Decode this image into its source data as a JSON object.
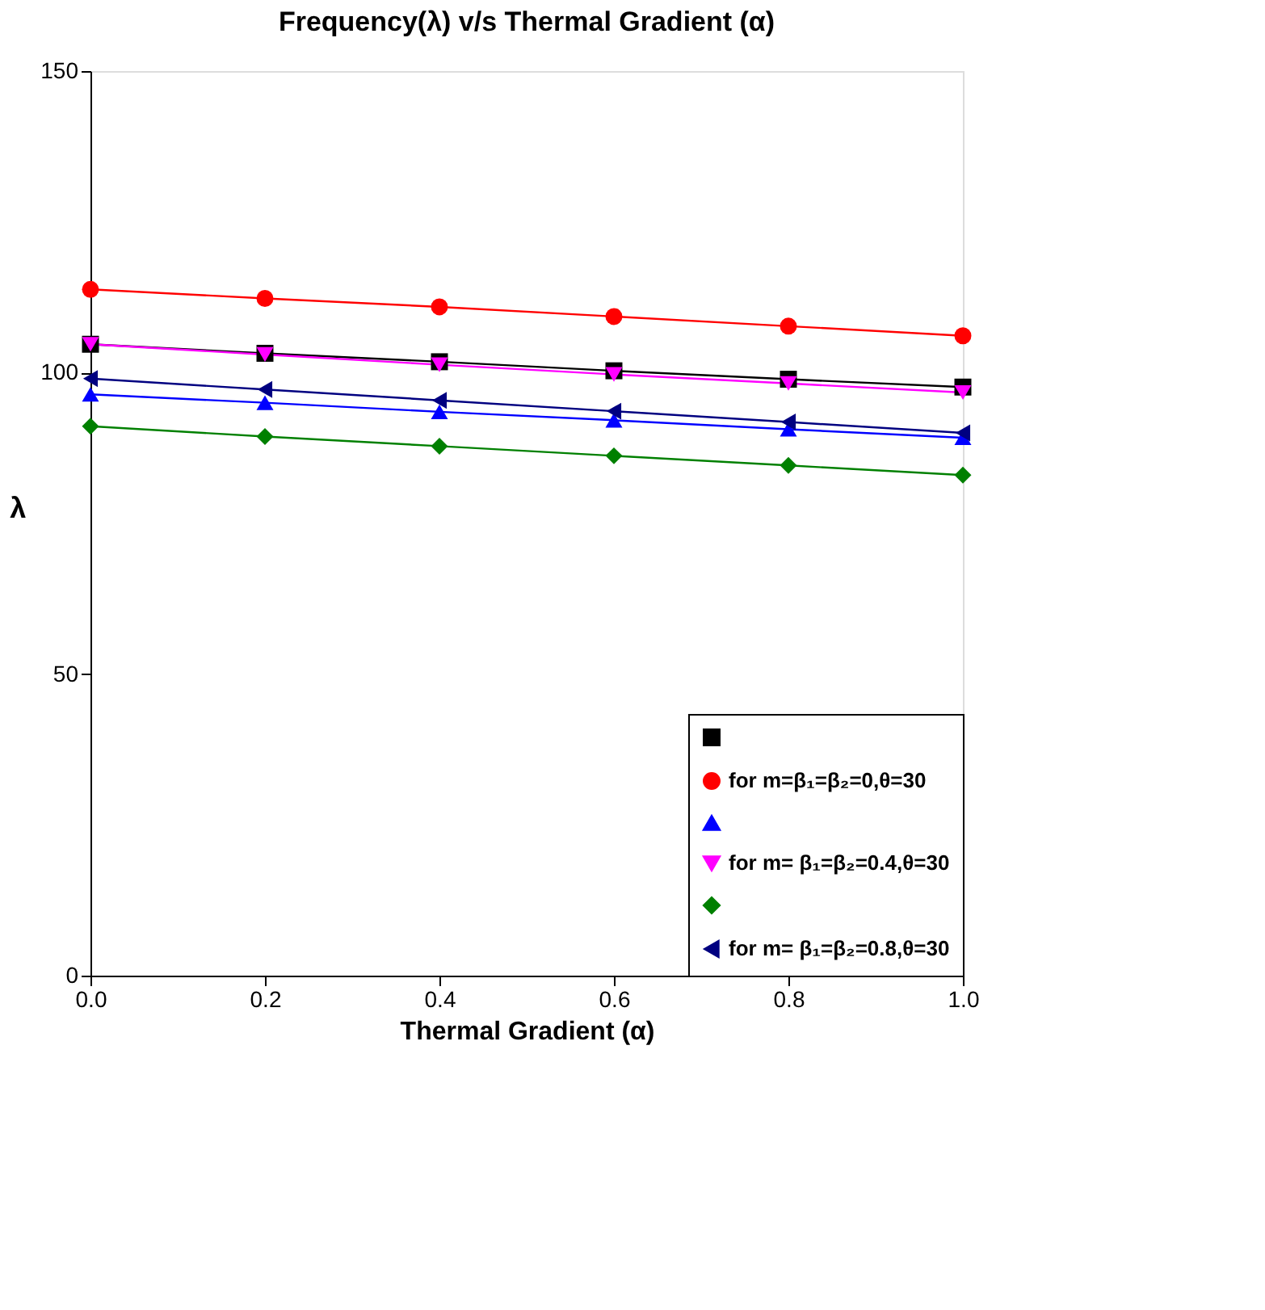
{
  "chart_data": {
    "type": "line",
    "title": "Frequency(λ) v/s Thermal Gradient (α)",
    "xlabel": "Thermal Gradient (α)",
    "ylabel": "λ",
    "x": [
      0,
      0.2,
      0.4,
      0.6,
      0.8,
      1.0
    ],
    "series": [
      {
        "color": "#000000",
        "marker": "square",
        "values": [
          104.7,
          103.2,
          101.8,
          100.3,
          98.9,
          97.6
        ]
      },
      {
        "name": "for m=β₁=β₂=0,θ=30",
        "color": "#ff0000",
        "marker": "circle",
        "values": [
          113.8,
          112.3,
          110.9,
          109.3,
          107.7,
          106.1
        ]
      },
      {
        "color": "#0000ff",
        "marker": "triangle",
        "values": [
          96.4,
          95.0,
          93.5,
          92.1,
          90.6,
          89.2
        ]
      },
      {
        "name": "for m= β₁=β₂=0.4,θ=30",
        "color": "#ff00ff",
        "marker": "triangle-down",
        "values": [
          104.7,
          103.0,
          101.3,
          99.7,
          98.2,
          96.7
        ]
      },
      {
        "color": "#008000",
        "marker": "diamond",
        "values": [
          91.1,
          89.4,
          87.8,
          86.2,
          84.6,
          83.0
        ]
      },
      {
        "name": "for m= β₁=β₂=0.8,θ=30",
        "color": "#000080",
        "marker": "triangle-left",
        "values": [
          99.0,
          97.2,
          95.4,
          93.6,
          91.8,
          90.0
        ]
      }
    ],
    "xlim": [
      0,
      1.0
    ],
    "xticks": [
      {
        "value": 0,
        "label": "0.0"
      },
      {
        "value": 0.2,
        "label": "0.2"
      },
      {
        "value": 0.4,
        "label": "0.4"
      },
      {
        "value": 0.6,
        "label": "0.6"
      },
      {
        "value": 0.8,
        "label": "0.8"
      },
      {
        "value": 1.0,
        "label": "1.0"
      }
    ],
    "ylim": [
      0,
      150
    ],
    "yticks": [
      0,
      50,
      100,
      150
    ],
    "grid": false,
    "legend": "bottom right",
    "line_style": "solid"
  }
}
